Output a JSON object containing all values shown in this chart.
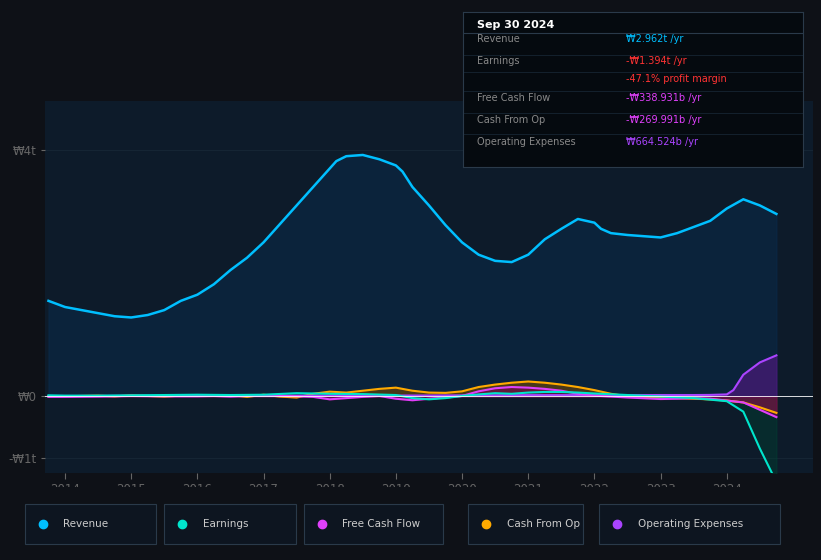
{
  "bg_color": "#0e1117",
  "plot_bg_color": "#0d1b2a",
  "legend_bg_color": "#131923",
  "ylabel_top": "₩4t",
  "ylabel_mid": "₩0",
  "ylabel_bot": "-₩1t",
  "ylim": [
    -1250000000000.0,
    4800000000000.0
  ],
  "xlim": [
    2013.7,
    2025.3
  ],
  "xticks": [
    2014,
    2015,
    2016,
    2017,
    2018,
    2019,
    2020,
    2021,
    2022,
    2023,
    2024
  ],
  "legend": [
    {
      "label": "Revenue",
      "color": "#00bfff"
    },
    {
      "label": "Earnings",
      "color": "#00e5cc"
    },
    {
      "label": "Free Cash Flow",
      "color": "#e040fb"
    },
    {
      "label": "Cash From Op",
      "color": "#ffaa00"
    },
    {
      "label": "Operating Expenses",
      "color": "#aa44ff"
    }
  ],
  "tooltip_date": "Sep 30 2024",
  "tooltip_rows": [
    {
      "label": "Revenue",
      "value": "₩2.962t /yr",
      "lc": "#888888",
      "vc": "#00bfff"
    },
    {
      "label": "Earnings",
      "value": "-₩1.394t /yr",
      "lc": "#888888",
      "vc": "#ff3333"
    },
    {
      "label": "",
      "value": "-47.1% profit margin",
      "lc": "#ff3333",
      "vc": "#ff3333"
    },
    {
      "label": "Free Cash Flow",
      "value": "-₩338.931b /yr",
      "lc": "#888888",
      "vc": "#e040fb"
    },
    {
      "label": "Cash From Op",
      "value": "-₩269.991b /yr",
      "lc": "#888888",
      "vc": "#e040fb"
    },
    {
      "label": "Operating Expenses",
      "value": "₩664.524b /yr",
      "lc": "#888888",
      "vc": "#aa44ff"
    }
  ],
  "revenue_years": [
    2013.75,
    2014.0,
    2014.25,
    2014.5,
    2014.75,
    2015.0,
    2015.25,
    2015.5,
    2015.75,
    2016.0,
    2016.25,
    2016.5,
    2016.75,
    2017.0,
    2017.25,
    2017.5,
    2017.75,
    2018.0,
    2018.1,
    2018.25,
    2018.5,
    2018.75,
    2019.0,
    2019.1,
    2019.25,
    2019.5,
    2019.75,
    2020.0,
    2020.25,
    2020.5,
    2020.75,
    2021.0,
    2021.25,
    2021.5,
    2021.75,
    2022.0,
    2022.1,
    2022.25,
    2022.5,
    2022.75,
    2023.0,
    2023.25,
    2023.5,
    2023.75,
    2024.0,
    2024.25,
    2024.5,
    2024.75
  ],
  "revenue_vals": [
    1550000000000.0,
    1450000000000.0,
    1400000000000.0,
    1350000000000.0,
    1300000000000.0,
    1280000000000.0,
    1320000000000.0,
    1400000000000.0,
    1550000000000.0,
    1650000000000.0,
    1820000000000.0,
    2050000000000.0,
    2250000000000.0,
    2500000000000.0,
    2800000000000.0,
    3100000000000.0,
    3400000000000.0,
    3700000000000.0,
    3820000000000.0,
    3900000000000.0,
    3920000000000.0,
    3850000000000.0,
    3750000000000.0,
    3650000000000.0,
    3400000000000.0,
    3100000000000.0,
    2780000000000.0,
    2500000000000.0,
    2300000000000.0,
    2200000000000.0,
    2180000000000.0,
    2300000000000.0,
    2550000000000.0,
    2720000000000.0,
    2880000000000.0,
    2820000000000.0,
    2720000000000.0,
    2650000000000.0,
    2620000000000.0,
    2600000000000.0,
    2580000000000.0,
    2650000000000.0,
    2750000000000.0,
    2850000000000.0,
    3050000000000.0,
    3200000000000.0,
    3100000000000.0,
    2962000000000.0
  ],
  "earnings_years": [
    2013.75,
    2014.0,
    2014.5,
    2015.0,
    2015.5,
    2016.0,
    2016.5,
    2017.0,
    2017.5,
    2018.0,
    2018.5,
    2019.0,
    2019.25,
    2019.5,
    2019.75,
    2020.0,
    2020.25,
    2020.5,
    2020.75,
    2021.0,
    2021.25,
    2021.5,
    2021.75,
    2022.0,
    2022.5,
    2023.0,
    2023.5,
    2024.0,
    2024.25,
    2024.5,
    2024.75
  ],
  "earnings_vals": [
    15000000000.0,
    10000000000.0,
    10000000000.0,
    15000000000.0,
    20000000000.0,
    25000000000.0,
    20000000000.0,
    25000000000.0,
    50000000000.0,
    40000000000.0,
    35000000000.0,
    20000000000.0,
    -30000000000.0,
    -50000000000.0,
    -30000000000.0,
    5000000000.0,
    30000000000.0,
    50000000000.0,
    40000000000.0,
    60000000000.0,
    70000000000.0,
    70000000000.0,
    60000000000.0,
    45000000000.0,
    20000000000.0,
    -5000000000.0,
    -30000000000.0,
    -80000000000.0,
    -250000000000.0,
    -850000000000.0,
    -1394000000000.0
  ],
  "fcf_years": [
    2013.75,
    2014.0,
    2014.5,
    2015.0,
    2015.5,
    2016.0,
    2016.25,
    2016.5,
    2016.75,
    2017.0,
    2017.25,
    2017.5,
    2017.75,
    2018.0,
    2018.25,
    2018.5,
    2018.75,
    2019.0,
    2019.25,
    2019.5,
    2019.75,
    2020.0,
    2020.25,
    2020.5,
    2020.75,
    2021.0,
    2021.25,
    2021.5,
    2021.75,
    2022.0,
    2022.5,
    2023.0,
    2023.25,
    2023.5,
    2023.75,
    2024.0,
    2024.25,
    2024.5,
    2024.75
  ],
  "fcf_vals": [
    -10000000000.0,
    -10000000000.0,
    -5000000000.0,
    5000000000.0,
    0.0,
    0.0,
    5000000000.0,
    -5000000000.0,
    5000000000.0,
    10000000000.0,
    5000000000.0,
    0.0,
    -10000000000.0,
    -50000000000.0,
    -30000000000.0,
    -10000000000.0,
    5000000000.0,
    -40000000000.0,
    -65000000000.0,
    -40000000000.0,
    -20000000000.0,
    5000000000.0,
    80000000000.0,
    130000000000.0,
    150000000000.0,
    140000000000.0,
    120000000000.0,
    90000000000.0,
    40000000000.0,
    10000000000.0,
    -20000000000.0,
    -45000000000.0,
    -40000000000.0,
    -30000000000.0,
    -40000000000.0,
    -70000000000.0,
    -100000000000.0,
    -220000000000.0,
    -338931000000.0
  ],
  "cfop_years": [
    2013.75,
    2014.0,
    2014.25,
    2014.5,
    2014.75,
    2015.0,
    2015.25,
    2015.5,
    2015.75,
    2016.0,
    2016.25,
    2016.5,
    2016.75,
    2017.0,
    2017.25,
    2017.5,
    2017.75,
    2018.0,
    2018.25,
    2018.5,
    2018.75,
    2019.0,
    2019.25,
    2019.5,
    2019.75,
    2020.0,
    2020.25,
    2020.5,
    2020.75,
    2021.0,
    2021.25,
    2021.5,
    2021.75,
    2022.0,
    2022.25,
    2022.5,
    2022.75,
    2023.0,
    2023.25,
    2023.5,
    2023.75,
    2024.0,
    2024.25,
    2024.5,
    2024.75
  ],
  "cfop_vals": [
    -5000000000.0,
    0.0,
    5000000000.0,
    10000000000.0,
    -2000000000.0,
    15000000000.0,
    5000000000.0,
    -5000000000.0,
    10000000000.0,
    15000000000.0,
    5000000000.0,
    20000000000.0,
    -10000000000.0,
    25000000000.0,
    -5000000000.0,
    -20000000000.0,
    40000000000.0,
    75000000000.0,
    60000000000.0,
    90000000000.0,
    120000000000.0,
    140000000000.0,
    90000000000.0,
    60000000000.0,
    55000000000.0,
    80000000000.0,
    150000000000.0,
    190000000000.0,
    220000000000.0,
    240000000000.0,
    220000000000.0,
    190000000000.0,
    150000000000.0,
    100000000000.0,
    40000000000.0,
    0.0,
    -10000000000.0,
    -20000000000.0,
    -30000000000.0,
    -40000000000.0,
    -50000000000.0,
    -70000000000.0,
    -100000000000.0,
    -180000000000.0,
    -269991000000.0
  ],
  "opex_years": [
    2013.75,
    2014.0,
    2014.5,
    2015.0,
    2015.5,
    2016.0,
    2016.5,
    2017.0,
    2017.5,
    2018.0,
    2018.5,
    2019.0,
    2019.5,
    2020.0,
    2020.5,
    2021.0,
    2021.5,
    2022.0,
    2022.5,
    2023.0,
    2023.5,
    2023.75,
    2024.0,
    2024.1,
    2024.25,
    2024.5,
    2024.75
  ],
  "opex_vals": [
    5000000000.0,
    5000000000.0,
    5000000000.0,
    8000000000.0,
    8000000000.0,
    8000000000.0,
    8000000000.0,
    10000000000.0,
    10000000000.0,
    10000000000.0,
    12000000000.0,
    12000000000.0,
    12000000000.0,
    15000000000.0,
    15000000000.0,
    18000000000.0,
    18000000000.0,
    18000000000.0,
    18000000000.0,
    20000000000.0,
    20000000000.0,
    22000000000.0,
    30000000000.0,
    100000000000.0,
    350000000000.0,
    550000000000.0,
    664524000000.0
  ]
}
